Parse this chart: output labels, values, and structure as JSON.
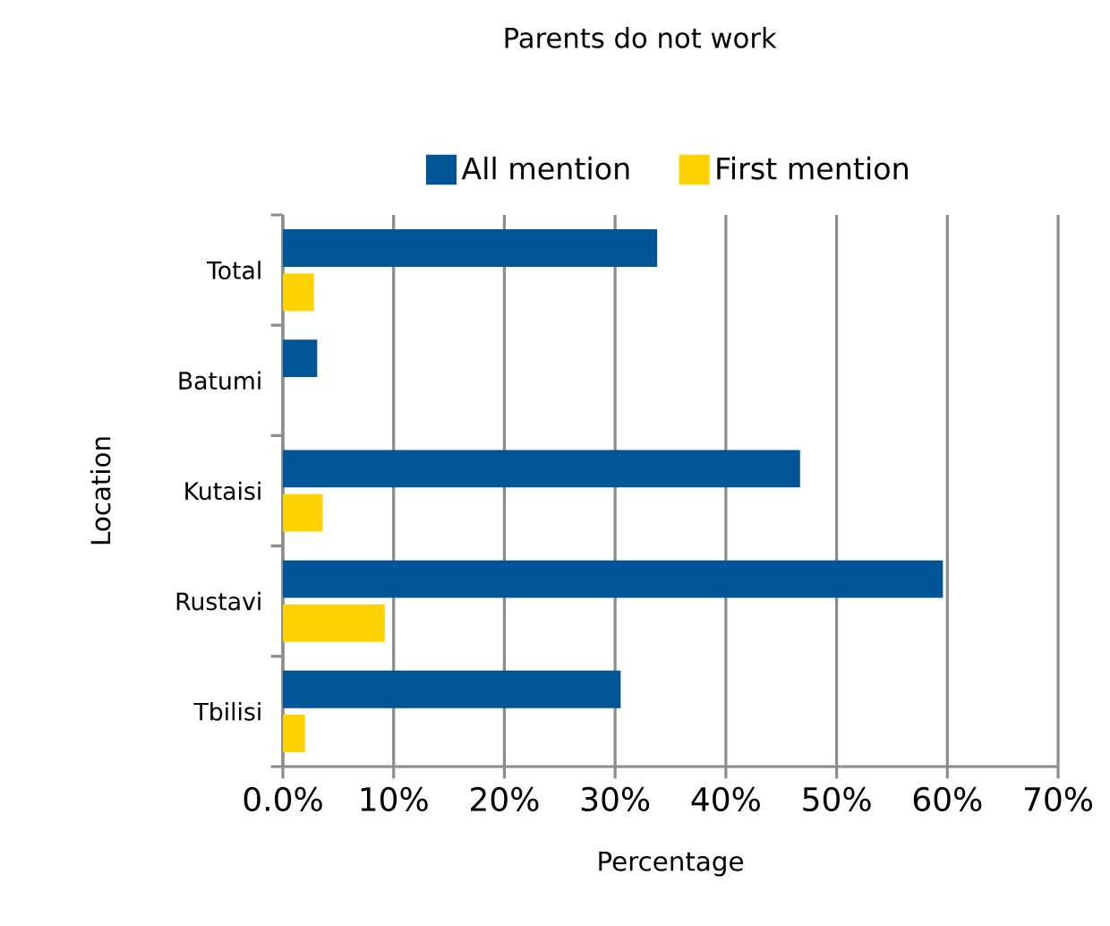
{
  "chart_data": {
    "type": "bar",
    "orientation": "horizontal",
    "title": "Parents do not work",
    "xlabel": "Percentage",
    "ylabel": "Location",
    "categories": [
      "Total",
      "Batumi",
      "Kutaisi",
      "Rustavi",
      "Tbilisi"
    ],
    "series": [
      {
        "name": "All mention",
        "color": "#005596",
        "values": [
          33.8,
          3.1,
          46.7,
          59.6,
          30.5
        ]
      },
      {
        "name": "First mention",
        "color": "#ffd200",
        "values": [
          2.8,
          null,
          3.6,
          9.2,
          2.0
        ]
      }
    ],
    "xlim": [
      0,
      70
    ],
    "xticks": [
      {
        "value": 0,
        "label": "0.0%"
      },
      {
        "value": 10,
        "label": "10%"
      },
      {
        "value": 20,
        "label": "20%"
      },
      {
        "value": 30,
        "label": "30%"
      },
      {
        "value": 40,
        "label": "40%"
      },
      {
        "value": 50,
        "label": "50%"
      },
      {
        "value": 60,
        "label": "60%"
      },
      {
        "value": 70,
        "label": "70%"
      }
    ],
    "grid": "x",
    "legend": "top"
  }
}
